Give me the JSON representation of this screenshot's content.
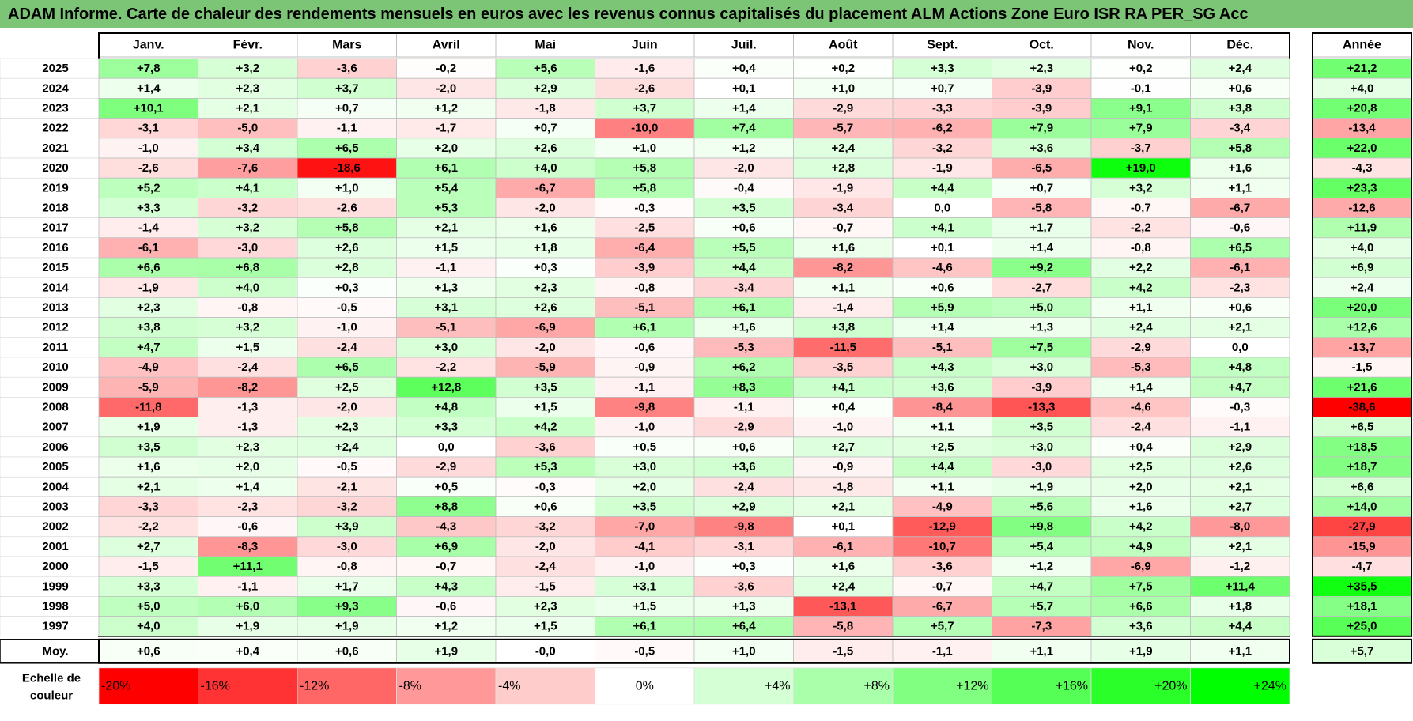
{
  "title": "ADAM Informe. Carte de chaleur des rendements mensuels en euros avec les revenus connus capitalisés du placement ALM Actions Zone Euro ISR RA PER_SG Acc",
  "chart_data": {
    "type": "heatmap",
    "columns": [
      "Janv.",
      "Févr.",
      "Mars",
      "Avril",
      "Mai",
      "Juin",
      "Juil.",
      "Août",
      "Sept.",
      "Oct.",
      "Nov.",
      "Déc."
    ],
    "annual_header": "Année",
    "rows": [
      {
        "year": "2025",
        "values": [
          "+7,8",
          "+3,2",
          "-3,6",
          "-0,2",
          "+5,6",
          "-1,6",
          "+0,4",
          "+0,2",
          "+3,3",
          "+2,3",
          "+0,2",
          "+2,4"
        ],
        "annual": "+21,2"
      },
      {
        "year": "2024",
        "values": [
          "+1,4",
          "+2,3",
          "+3,7",
          "-2,0",
          "+2,9",
          "-2,6",
          "+0,1",
          "+1,0",
          "+0,7",
          "-3,9",
          "-0,1",
          "+0,6"
        ],
        "annual": "+4,0"
      },
      {
        "year": "2023",
        "values": [
          "+10,1",
          "+2,1",
          "+0,7",
          "+1,2",
          "-1,8",
          "+3,7",
          "+1,4",
          "-2,9",
          "-3,3",
          "-3,9",
          "+9,1",
          "+3,8"
        ],
        "annual": "+20,8"
      },
      {
        "year": "2022",
        "values": [
          "-3,1",
          "-5,0",
          "-1,1",
          "-1,7",
          "+0,7",
          "-10,0",
          "+7,4",
          "-5,7",
          "-6,2",
          "+7,9",
          "+7,9",
          "-3,4"
        ],
        "annual": "-13,4"
      },
      {
        "year": "2021",
        "values": [
          "-1,0",
          "+3,4",
          "+6,5",
          "+2,0",
          "+2,6",
          "+1,0",
          "+1,2",
          "+2,4",
          "-3,2",
          "+3,6",
          "-3,7",
          "+5,8"
        ],
        "annual": "+22,0"
      },
      {
        "year": "2020",
        "values": [
          "-2,6",
          "-7,6",
          "-18,6",
          "+6,1",
          "+4,0",
          "+5,8",
          "-2,0",
          "+2,8",
          "-1,9",
          "-6,5",
          "+19,0",
          "+1,6"
        ],
        "annual": "-4,3"
      },
      {
        "year": "2019",
        "values": [
          "+5,2",
          "+4,1",
          "+1,0",
          "+5,4",
          "-6,7",
          "+5,8",
          "-0,4",
          "-1,9",
          "+4,4",
          "+0,7",
          "+3,2",
          "+1,1"
        ],
        "annual": "+23,3"
      },
      {
        "year": "2018",
        "values": [
          "+3,3",
          "-3,2",
          "-2,6",
          "+5,3",
          "-2,0",
          "-0,3",
          "+3,5",
          "-3,4",
          "0,0",
          "-5,8",
          "-0,7",
          "-6,7"
        ],
        "annual": "-12,6"
      },
      {
        "year": "2017",
        "values": [
          "-1,4",
          "+3,2",
          "+5,8",
          "+2,1",
          "+1,6",
          "-2,5",
          "+0,6",
          "-0,7",
          "+4,1",
          "+1,7",
          "-2,2",
          "-0,6"
        ],
        "annual": "+11,9"
      },
      {
        "year": "2016",
        "values": [
          "-6,1",
          "-3,0",
          "+2,6",
          "+1,5",
          "+1,8",
          "-6,4",
          "+5,5",
          "+1,6",
          "+0,1",
          "+1,4",
          "-0,8",
          "+6,5"
        ],
        "annual": "+4,0"
      },
      {
        "year": "2015",
        "values": [
          "+6,6",
          "+6,8",
          "+2,8",
          "-1,1",
          "+0,3",
          "-3,9",
          "+4,4",
          "-8,2",
          "-4,6",
          "+9,2",
          "+2,2",
          "-6,1"
        ],
        "annual": "+6,9"
      },
      {
        "year": "2014",
        "values": [
          "-1,9",
          "+4,0",
          "+0,3",
          "+1,3",
          "+2,3",
          "-0,8",
          "-3,4",
          "+1,1",
          "+0,6",
          "-2,7",
          "+4,2",
          "-2,3"
        ],
        "annual": "+2,4"
      },
      {
        "year": "2013",
        "values": [
          "+2,3",
          "-0,8",
          "-0,5",
          "+3,1",
          "+2,6",
          "-5,1",
          "+6,1",
          "-1,4",
          "+5,9",
          "+5,0",
          "+1,1",
          "+0,6"
        ],
        "annual": "+20,0"
      },
      {
        "year": "2012",
        "values": [
          "+3,8",
          "+3,2",
          "-1,0",
          "-5,1",
          "-6,9",
          "+6,1",
          "+1,6",
          "+3,8",
          "+1,4",
          "+1,3",
          "+2,4",
          "+2,1"
        ],
        "annual": "+12,6"
      },
      {
        "year": "2011",
        "values": [
          "+4,7",
          "+1,5",
          "-2,4",
          "+3,0",
          "-2,0",
          "-0,6",
          "-5,3",
          "-11,5",
          "-5,1",
          "+7,5",
          "-2,9",
          "0,0"
        ],
        "annual": "-13,7"
      },
      {
        "year": "2010",
        "values": [
          "-4,9",
          "-2,4",
          "+6,5",
          "-2,2",
          "-5,9",
          "-0,9",
          "+6,2",
          "-3,5",
          "+4,3",
          "+3,0",
          "-5,3",
          "+4,8"
        ],
        "annual": "-1,5"
      },
      {
        "year": "2009",
        "values": [
          "-5,9",
          "-8,2",
          "+2,5",
          "+12,8",
          "+3,5",
          "-1,1",
          "+8,3",
          "+4,1",
          "+3,6",
          "-3,9",
          "+1,4",
          "+4,7"
        ],
        "annual": "+21,6"
      },
      {
        "year": "2008",
        "values": [
          "-11,8",
          "-1,3",
          "-2,0",
          "+4,8",
          "+1,5",
          "-9,8",
          "-1,1",
          "+0,4",
          "-8,4",
          "-13,3",
          "-4,6",
          "-0,3"
        ],
        "annual": "-38,6"
      },
      {
        "year": "2007",
        "values": [
          "+1,9",
          "-1,3",
          "+2,3",
          "+3,3",
          "+4,2",
          "-1,0",
          "-2,9",
          "-1,0",
          "+1,1",
          "+3,5",
          "-2,4",
          "-1,1"
        ],
        "annual": "+6,5"
      },
      {
        "year": "2006",
        "values": [
          "+3,5",
          "+2,3",
          "+2,4",
          "0,0",
          "-3,6",
          "+0,5",
          "+0,6",
          "+2,7",
          "+2,5",
          "+3,0",
          "+0,4",
          "+2,9"
        ],
        "annual": "+18,5"
      },
      {
        "year": "2005",
        "values": [
          "+1,6",
          "+2,0",
          "-0,5",
          "-2,9",
          "+5,3",
          "+3,0",
          "+3,6",
          "-0,9",
          "+4,4",
          "-3,0",
          "+2,5",
          "+2,6"
        ],
        "annual": "+18,7"
      },
      {
        "year": "2004",
        "values": [
          "+2,1",
          "+1,4",
          "-2,1",
          "+0,5",
          "-0,3",
          "+2,0",
          "-2,4",
          "-1,8",
          "+1,1",
          "+1,9",
          "+2,0",
          "+2,1"
        ],
        "annual": "+6,6"
      },
      {
        "year": "2003",
        "values": [
          "-3,3",
          "-2,3",
          "-3,2",
          "+8,8",
          "+0,6",
          "+3,5",
          "+2,9",
          "+2,1",
          "-4,9",
          "+5,6",
          "+1,6",
          "+2,7"
        ],
        "annual": "+14,0"
      },
      {
        "year": "2002",
        "values": [
          "-2,2",
          "-0,6",
          "+3,9",
          "-4,3",
          "-3,2",
          "-7,0",
          "-9,8",
          "+0,1",
          "-12,9",
          "+9,8",
          "+4,2",
          "-8,0"
        ],
        "annual": "-27,9"
      },
      {
        "year": "2001",
        "values": [
          "+2,7",
          "-8,3",
          "-3,0",
          "+6,9",
          "-2,0",
          "-4,1",
          "-3,1",
          "-6,1",
          "-10,7",
          "+5,4",
          "+4,9",
          "+2,1"
        ],
        "annual": "-15,9"
      },
      {
        "year": "2000",
        "values": [
          "-1,5",
          "+11,1",
          "-0,8",
          "-0,7",
          "-2,4",
          "-1,0",
          "+0,3",
          "+1,6",
          "-3,6",
          "+1,2",
          "-6,9",
          "-1,2"
        ],
        "annual": "-4,7"
      },
      {
        "year": "1999",
        "values": [
          "+3,3",
          "-1,1",
          "+1,7",
          "+4,3",
          "-1,5",
          "+3,1",
          "-3,6",
          "+2,4",
          "-0,7",
          "+4,7",
          "+7,5",
          "+11,4"
        ],
        "annual": "+35,5"
      },
      {
        "year": "1998",
        "values": [
          "+5,0",
          "+6,0",
          "+9,3",
          "-0,6",
          "+2,3",
          "+1,5",
          "+1,3",
          "-13,1",
          "-6,7",
          "+5,7",
          "+6,6",
          "+1,8"
        ],
        "annual": "+18,1"
      },
      {
        "year": "1997",
        "values": [
          "+4,0",
          "+1,9",
          "+1,9",
          "+1,2",
          "+1,5",
          "+6,1",
          "+6,4",
          "-5,8",
          "+5,7",
          "-7,3",
          "+3,6",
          "+4,4"
        ],
        "annual": "+25,0"
      }
    ],
    "average": {
      "label": "Moy.",
      "values": [
        "+0,6",
        "+0,4",
        "+0,6",
        "+1,9",
        "-0,0",
        "-0,5",
        "+1,0",
        "-1,5",
        "-1,1",
        "+1,1",
        "+1,9",
        "+1,1"
      ],
      "annual": "+5,7"
    },
    "scale": {
      "label_line1": "Echelle de",
      "label_line2": "couleur",
      "stops": [
        {
          "label": "-20%",
          "color": "#ff0000"
        },
        {
          "label": "-16%",
          "color": "#ff3333"
        },
        {
          "label": "-12%",
          "color": "#ff6666"
        },
        {
          "label": "-8%",
          "color": "#ff9999"
        },
        {
          "label": "-4%",
          "color": "#ffcccc"
        },
        {
          "label": "0%",
          "color": "#ffffff"
        },
        {
          "label": "+4%",
          "color": "#d5ffd5"
        },
        {
          "label": "+8%",
          "color": "#aaffaa"
        },
        {
          "label": "+12%",
          "color": "#80ff80"
        },
        {
          "label": "+16%",
          "color": "#55ff55"
        },
        {
          "label": "+20%",
          "color": "#2aff2a"
        },
        {
          "label": "+24%",
          "color": "#00ff00"
        }
      ]
    }
  }
}
